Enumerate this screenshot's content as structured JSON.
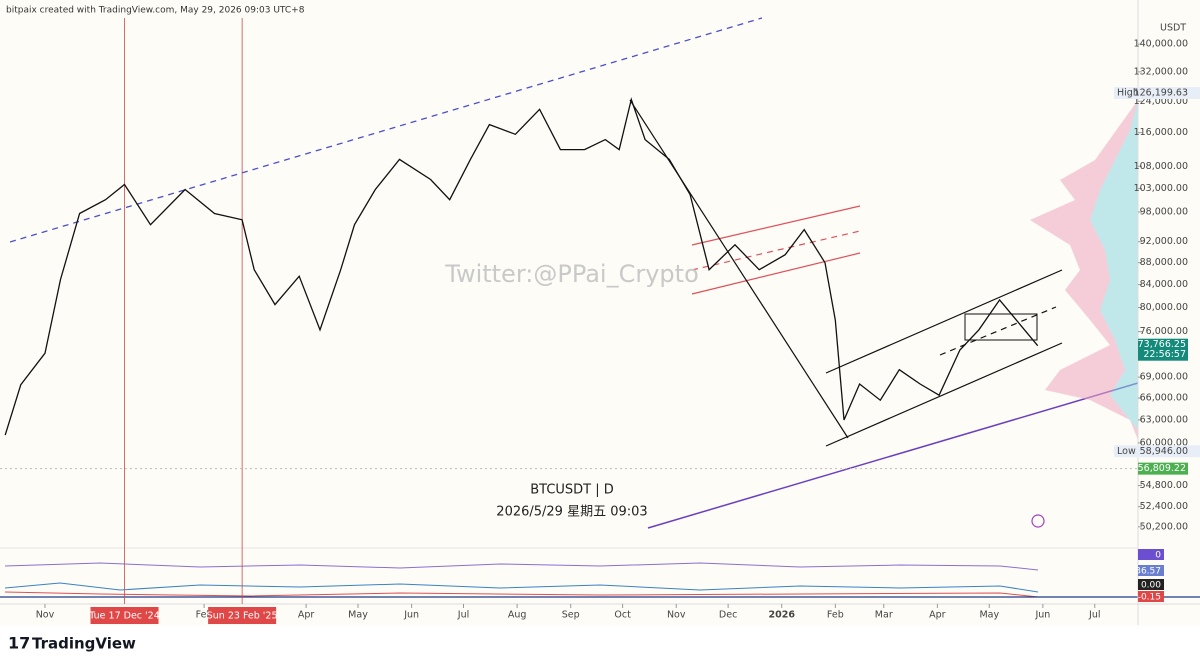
{
  "header": "bitpaix created with TradingView.com, May 29, 2026 09:03 UTC+8",
  "watermark": "Twitter:@PPai_Crypto",
  "symbol": "BTCUSDT | D",
  "timestamp": "2026/5/29 星期五 09:03",
  "brand": "TradingView",
  "chart_data": {
    "type": "line",
    "currency": "USDT",
    "log_scale": true,
    "color": "#111111",
    "x": [
      "2024-10-09",
      "2024-10-18",
      "2024-11-01",
      "2024-11-10",
      "2024-11-21",
      "2024-12-06",
      "2024-12-17",
      "2025-01-01",
      "2025-01-21",
      "2025-02-07",
      "2025-02-23",
      "2025-03-02",
      "2025-03-14",
      "2025-03-28",
      "2025-04-09",
      "2025-04-21",
      "2025-04-29",
      "2025-05-11",
      "2025-05-25",
      "2025-06-12",
      "2025-06-23",
      "2025-07-05",
      "2025-07-16",
      "2025-07-31",
      "2025-08-14",
      "2025-08-26",
      "2025-09-09",
      "2025-09-21",
      "2025-09-29",
      "2025-10-06",
      "2025-10-14",
      "2025-10-28",
      "2025-11-09",
      "2025-11-20",
      "2025-12-05",
      "2025-12-19",
      "2026-01-03",
      "2026-01-14",
      "2026-01-26",
      "2026-02-01",
      "2026-02-06",
      "2026-02-15",
      "2026-02-27",
      "2026-03-10",
      "2026-03-22",
      "2026-04-02",
      "2026-04-14",
      "2026-04-25",
      "2026-05-07",
      "2026-05-19",
      "2026-05-29"
    ],
    "values": [
      61000,
      67900,
      72600,
      84900,
      97700,
      100600,
      103900,
      95400,
      102800,
      97700,
      96400,
      86700,
      80500,
      85500,
      76300,
      86700,
      95400,
      102800,
      109600,
      105000,
      100600,
      109600,
      118000,
      115600,
      121900,
      111900,
      111900,
      114300,
      111900,
      124500,
      114300,
      109600,
      101700,
      86700,
      91400,
      86700,
      89500,
      94400,
      88000,
      77900,
      63000,
      68000,
      65700,
      70100,
      68000,
      66400,
      73100,
      76300,
      81300,
      77100,
      73766.25
    ],
    "xlim": [
      "2024-10-06",
      "2026-07-26"
    ],
    "ylim": [
      48300,
      148000
    ],
    "yticks": [
      {
        "value": 140000,
        "label": "140,000.00"
      },
      {
        "value": 132000,
        "label": "132,000.00"
      },
      {
        "value": 124000,
        "label": "124,000.00"
      },
      {
        "value": 116000,
        "label": "116,000.00"
      },
      {
        "value": 108000,
        "label": "108,000.00"
      },
      {
        "value": 103000,
        "label": "103,000.00"
      },
      {
        "value": 98000,
        "label": "98,000.00"
      },
      {
        "value": 92000,
        "label": "92,000.00"
      },
      {
        "value": 88000,
        "label": "88,000.00"
      },
      {
        "value": 84000,
        "label": "84,000.00"
      },
      {
        "value": 80000,
        "label": "80,000.00"
      },
      {
        "value": 76000,
        "label": "76,000.00"
      },
      {
        "value": 69000,
        "label": "69,000.00"
      },
      {
        "value": 66000,
        "label": "66,000.00"
      },
      {
        "value": 63000,
        "label": "63,000.00"
      },
      {
        "value": 60000,
        "label": "60,000.00"
      },
      {
        "value": 54800,
        "label": "54,800.00"
      },
      {
        "value": 52400,
        "label": "52,400.00"
      },
      {
        "value": 50200,
        "label": "50,200.00"
      }
    ],
    "xticks": [
      {
        "value": "2024-11-01",
        "label": "Nov"
      },
      {
        "value": "2025-02-01",
        "label": "Feb"
      },
      {
        "value": "2025-04-01",
        "label": "Apr"
      },
      {
        "value": "2025-05-01",
        "label": "May"
      },
      {
        "value": "2025-06-01",
        "label": "Jun"
      },
      {
        "value": "2025-07-01",
        "label": "Jul"
      },
      {
        "value": "2025-08-01",
        "label": "Aug"
      },
      {
        "value": "2025-09-01",
        "label": "Sep"
      },
      {
        "value": "2025-10-01",
        "label": "Oct"
      },
      {
        "value": "2025-11-01",
        "label": "Nov"
      },
      {
        "value": "2025-12-01",
        "label": "Dec"
      },
      {
        "value": "2026-01-01",
        "label": "2026"
      },
      {
        "value": "2026-02-01",
        "label": "Feb"
      },
      {
        "value": "2026-03-01",
        "label": "Mar"
      },
      {
        "value": "2026-04-01",
        "label": "Apr"
      },
      {
        "value": "2026-05-01",
        "label": "May"
      },
      {
        "value": "2026-06-01",
        "label": "Jun"
      },
      {
        "value": "2026-07-01",
        "label": "Jul"
      }
    ],
    "markers": [
      {
        "date": "2024-12-17",
        "label": "Tue 17 Dec '24"
      },
      {
        "date": "2025-02-23",
        "label": "Sun 23 Feb '25"
      }
    ],
    "high": {
      "name": "High",
      "value": 126199.63,
      "label": "126,199.63"
    },
    "low": {
      "name": "Low",
      "value": 58946,
      "label": "58,946.00"
    },
    "last_price": {
      "value": 73766.25,
      "label": "73,766.25",
      "countdown": "22:56:57"
    },
    "level": {
      "value": 56809.22,
      "label": "56,809.22"
    },
    "indicator_labels": [
      "0",
      "36.57",
      "0.00",
      "-0.15"
    ]
  }
}
